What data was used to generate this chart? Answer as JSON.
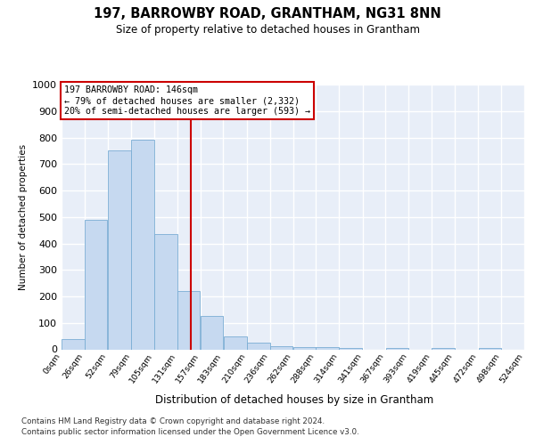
{
  "title": "197, BARROWBY ROAD, GRANTHAM, NG31 8NN",
  "subtitle": "Size of property relative to detached houses in Grantham",
  "xlabel": "Distribution of detached houses by size in Grantham",
  "ylabel": "Number of detached properties",
  "bar_color": "#c6d9f0",
  "bar_edge_color": "#7aadd4",
  "background_color": "#e8eef8",
  "grid_color": "#ffffff",
  "property_line_color": "#cc0000",
  "property_value": 146,
  "annotation_line1": "197 BARROWBY ROAD: 146sqm",
  "annotation_line2": "← 79% of detached houses are smaller (2,332)",
  "annotation_line3": "20% of semi-detached houses are larger (593) →",
  "bins": [
    0,
    26,
    52,
    79,
    105,
    131,
    157,
    183,
    210,
    236,
    262,
    288,
    314,
    341,
    367,
    393,
    419,
    445,
    472,
    498,
    524
  ],
  "heights": [
    40,
    490,
    750,
    790,
    435,
    220,
    125,
    50,
    25,
    13,
    10,
    8,
    5,
    0,
    5,
    0,
    5,
    0,
    5,
    0
  ],
  "ylim": [
    0,
    1000
  ],
  "yticks": [
    0,
    100,
    200,
    300,
    400,
    500,
    600,
    700,
    800,
    900,
    1000
  ],
  "footnote1": "Contains HM Land Registry data © Crown copyright and database right 2024.",
  "footnote2": "Contains public sector information licensed under the Open Government Licence v3.0."
}
